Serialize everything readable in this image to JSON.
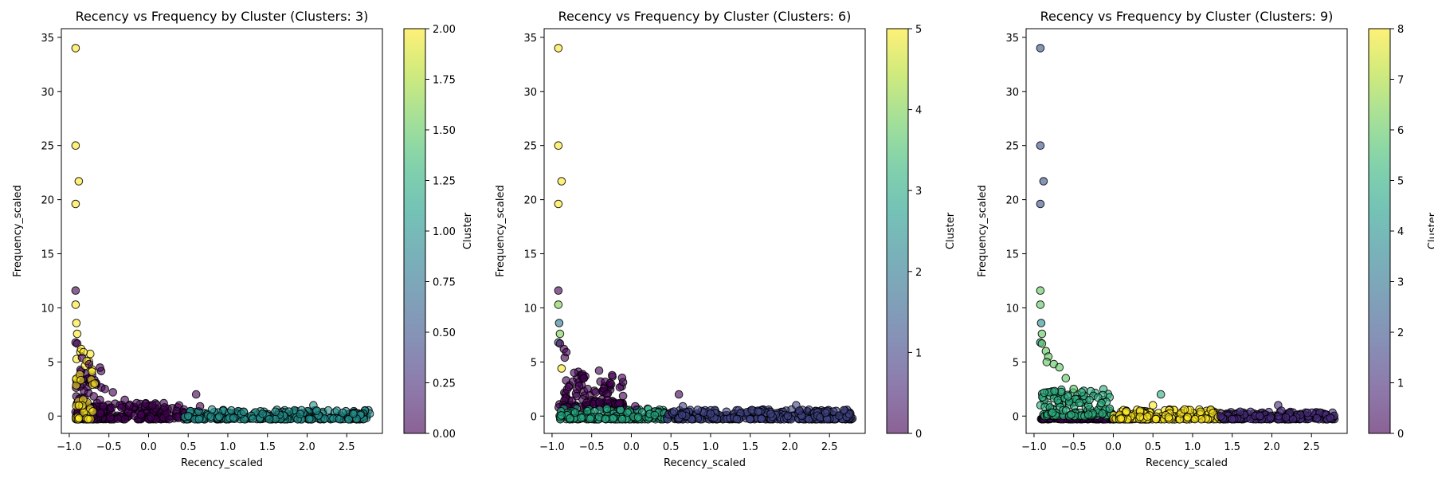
{
  "colorbar_label": "Cluster",
  "chart_data": [
    {
      "type": "scatter",
      "title": "Recency vs Frequency by Cluster (Clusters: 3)",
      "xlabel": "Recency_scaled",
      "ylabel": "Frequency_scaled",
      "xlim": [
        -1.1,
        2.95
      ],
      "ylim": [
        -1.6,
        35.8
      ],
      "xticks": [
        "−1.0",
        "−0.5",
        "0.0",
        "0.5",
        "1.0",
        "1.5",
        "2.0",
        "2.5"
      ],
      "yticks": [
        "0",
        "5",
        "10",
        "15",
        "20",
        "25",
        "30",
        "35"
      ],
      "colorbar": {
        "label": "Cluster",
        "min": 0,
        "max": 2,
        "ticks": [
          "0.00",
          "0.25",
          "0.50",
          "0.75",
          "1.00",
          "1.25",
          "1.50",
          "1.75",
          "2.00"
        ]
      },
      "groups": [
        {
          "cluster": 0,
          "x_range": [
            -0.92,
            0.48
          ],
          "y_range": [
            -0.3,
            1.2
          ],
          "dense_x_range": [
            -0.92,
            -0.55
          ],
          "dense_y_range": [
            -0.3,
            4.5
          ]
        },
        {
          "cluster": 1,
          "x_range": [
            0.45,
            2.8
          ],
          "y_range": [
            -0.3,
            0.6
          ]
        },
        {
          "cluster": 2,
          "x_range": [
            -0.92,
            -0.7
          ],
          "y_range": [
            -0.3,
            6.0
          ]
        }
      ],
      "points": [
        {
          "x": -0.92,
          "y": 34.0,
          "cluster": 2
        },
        {
          "x": -0.92,
          "y": 25.0,
          "cluster": 2
        },
        {
          "x": -0.88,
          "y": 21.7,
          "cluster": 2
        },
        {
          "x": -0.92,
          "y": 19.6,
          "cluster": 2
        },
        {
          "x": -0.92,
          "y": 11.6,
          "cluster": 0
        },
        {
          "x": -0.92,
          "y": 10.3,
          "cluster": 2
        },
        {
          "x": -0.91,
          "y": 8.6,
          "cluster": 2
        },
        {
          "x": -0.9,
          "y": 7.6,
          "cluster": 2
        },
        {
          "x": -0.92,
          "y": 6.8,
          "cluster": 0
        },
        {
          "x": -0.9,
          "y": 6.7,
          "cluster": 0
        },
        {
          "x": -0.85,
          "y": 6.2,
          "cluster": 2
        },
        {
          "x": -0.82,
          "y": 5.9,
          "cluster": 2
        },
        {
          "x": -0.84,
          "y": 5.4,
          "cluster": 0
        },
        {
          "x": -0.78,
          "y": 5.1,
          "cluster": 2
        },
        {
          "x": -0.75,
          "y": 4.8,
          "cluster": 0
        },
        {
          "x": -0.68,
          "y": 3.0,
          "cluster": 2
        },
        {
          "x": -0.55,
          "y": 2.5,
          "cluster": 0
        },
        {
          "x": -0.45,
          "y": 2.2,
          "cluster": 0
        },
        {
          "x": -0.3,
          "y": 1.5,
          "cluster": 0
        },
        {
          "x": -0.15,
          "y": 1.2,
          "cluster": 0
        },
        {
          "x": 0.05,
          "y": 1.0,
          "cluster": 0
        },
        {
          "x": 0.2,
          "y": 0.8,
          "cluster": 0
        },
        {
          "x": 0.6,
          "y": 2.0,
          "cluster": 0
        },
        {
          "x": 0.65,
          "y": 0.9,
          "cluster": 0
        },
        {
          "x": 0.8,
          "y": 0.6,
          "cluster": 1
        },
        {
          "x": 1.2,
          "y": 0.4,
          "cluster": 1
        },
        {
          "x": 1.6,
          "y": 0.4,
          "cluster": 1
        },
        {
          "x": 2.08,
          "y": 1.0,
          "cluster": 1
        },
        {
          "x": 2.12,
          "y": 0.5,
          "cluster": 1
        },
        {
          "x": 2.45,
          "y": 0.3,
          "cluster": 1
        }
      ]
    },
    {
      "type": "scatter",
      "title": "Recency vs Frequency by Cluster (Clusters: 6)",
      "xlabel": "Recency_scaled",
      "ylabel": "Frequency_scaled",
      "xlim": [
        -1.1,
        2.95
      ],
      "ylim": [
        -1.6,
        35.8
      ],
      "xticks": [
        "−1.0",
        "−0.5",
        "0.0",
        "0.5",
        "1.0",
        "1.5",
        "2.0",
        "2.5"
      ],
      "yticks": [
        "0",
        "5",
        "10",
        "15",
        "20",
        "25",
        "30",
        "35"
      ],
      "colorbar": {
        "label": "Cluster",
        "min": 0,
        "max": 5,
        "ticks": [
          "0",
          "1",
          "2",
          "3",
          "4",
          "5"
        ]
      },
      "groups": [
        {
          "cluster": 0,
          "x_range": [
            -0.92,
            -0.1
          ],
          "y_range": [
            0.8,
            4.5
          ]
        },
        {
          "cluster": 3,
          "x_range": [
            -0.92,
            0.45
          ],
          "y_range": [
            -0.3,
            0.7
          ]
        },
        {
          "cluster": 1,
          "x_range": [
            0.45,
            2.8
          ],
          "y_range": [
            -0.3,
            0.6
          ]
        }
      ],
      "points": [
        {
          "x": -0.92,
          "y": 34.0,
          "cluster": 5
        },
        {
          "x": -0.92,
          "y": 25.0,
          "cluster": 5
        },
        {
          "x": -0.88,
          "y": 21.7,
          "cluster": 5
        },
        {
          "x": -0.92,
          "y": 19.6,
          "cluster": 5
        },
        {
          "x": -0.92,
          "y": 11.6,
          "cluster": 0
        },
        {
          "x": -0.92,
          "y": 10.3,
          "cluster": 4
        },
        {
          "x": -0.91,
          "y": 8.6,
          "cluster": 2
        },
        {
          "x": -0.9,
          "y": 7.6,
          "cluster": 4
        },
        {
          "x": -0.92,
          "y": 6.8,
          "cluster": 2
        },
        {
          "x": -0.9,
          "y": 6.7,
          "cluster": 0
        },
        {
          "x": -0.85,
          "y": 6.2,
          "cluster": 0
        },
        {
          "x": -0.82,
          "y": 5.9,
          "cluster": 0
        },
        {
          "x": -0.84,
          "y": 5.4,
          "cluster": 0
        },
        {
          "x": -0.88,
          "y": 4.4,
          "cluster": 5
        },
        {
          "x": -0.72,
          "y": 4.0,
          "cluster": 0
        },
        {
          "x": -0.6,
          "y": 3.5,
          "cluster": 0
        },
        {
          "x": -0.55,
          "y": 2.5,
          "cluster": 0
        },
        {
          "x": -0.45,
          "y": 2.2,
          "cluster": 0
        },
        {
          "x": -0.3,
          "y": 1.5,
          "cluster": 0
        },
        {
          "x": -0.15,
          "y": 1.2,
          "cluster": 0
        },
        {
          "x": 0.05,
          "y": 0.9,
          "cluster": 0
        },
        {
          "x": 0.6,
          "y": 2.0,
          "cluster": 0
        },
        {
          "x": 0.65,
          "y": 0.9,
          "cluster": 1
        },
        {
          "x": 1.2,
          "y": 0.4,
          "cluster": 1
        },
        {
          "x": 1.6,
          "y": 0.4,
          "cluster": 1
        },
        {
          "x": 2.08,
          "y": 1.0,
          "cluster": 1
        },
        {
          "x": 2.12,
          "y": 0.5,
          "cluster": 1
        },
        {
          "x": 2.45,
          "y": 0.3,
          "cluster": 1
        }
      ]
    },
    {
      "type": "scatter",
      "title": "Recency vs Frequency by Cluster (Clusters: 9)",
      "xlabel": "Recency_scaled",
      "ylabel": "Frequency_scaled",
      "xlim": [
        -1.1,
        2.95
      ],
      "ylim": [
        -1.6,
        35.8
      ],
      "xticks": [
        "−1.0",
        "−0.5",
        "0.0",
        "0.5",
        "1.0",
        "1.5",
        "2.0",
        "2.5"
      ],
      "yticks": [
        "0",
        "5",
        "10",
        "15",
        "20",
        "25",
        "30",
        "35"
      ],
      "colorbar": {
        "label": "Cluster",
        "min": 0,
        "max": 8,
        "ticks": [
          "0",
          "1",
          "2",
          "3",
          "4",
          "5",
          "6",
          "7",
          "8"
        ]
      },
      "groups": [
        {
          "cluster": 0,
          "x_range": [
            -0.92,
            0.45
          ],
          "y_range": [
            -0.3,
            -0.1
          ]
        },
        {
          "cluster": 5,
          "x_range": [
            -0.92,
            0.0
          ],
          "y_range": [
            0.0,
            2.5
          ]
        },
        {
          "cluster": 8,
          "x_range": [
            0.0,
            1.35
          ],
          "y_range": [
            -0.3,
            0.6
          ]
        },
        {
          "cluster": 1,
          "x_range": [
            1.35,
            2.8
          ],
          "y_range": [
            -0.3,
            0.4
          ]
        }
      ],
      "points": [
        {
          "x": -0.92,
          "y": 34.0,
          "cluster": 2
        },
        {
          "x": -0.92,
          "y": 25.0,
          "cluster": 2
        },
        {
          "x": -0.88,
          "y": 21.7,
          "cluster": 2
        },
        {
          "x": -0.92,
          "y": 19.6,
          "cluster": 2
        },
        {
          "x": -0.92,
          "y": 11.6,
          "cluster": 6
        },
        {
          "x": -0.92,
          "y": 10.3,
          "cluster": 6
        },
        {
          "x": -0.91,
          "y": 8.6,
          "cluster": 4
        },
        {
          "x": -0.9,
          "y": 7.6,
          "cluster": 6
        },
        {
          "x": -0.92,
          "y": 6.8,
          "cluster": 4
        },
        {
          "x": -0.9,
          "y": 6.7,
          "cluster": 6
        },
        {
          "x": -0.85,
          "y": 6.0,
          "cluster": 6
        },
        {
          "x": -0.82,
          "y": 5.5,
          "cluster": 6
        },
        {
          "x": -0.84,
          "y": 5.0,
          "cluster": 6
        },
        {
          "x": -0.75,
          "y": 4.8,
          "cluster": 6
        },
        {
          "x": -0.68,
          "y": 4.5,
          "cluster": 6
        },
        {
          "x": -0.6,
          "y": 3.5,
          "cluster": 6
        },
        {
          "x": -0.5,
          "y": 2.5,
          "cluster": 6
        },
        {
          "x": -0.4,
          "y": 2.2,
          "cluster": 5
        },
        {
          "x": -0.3,
          "y": 1.5,
          "cluster": 5
        },
        {
          "x": -0.15,
          "y": 1.2,
          "cluster": 5
        },
        {
          "x": 0.6,
          "y": 2.0,
          "cluster": 5
        },
        {
          "x": 0.5,
          "y": 1.0,
          "cluster": 8
        },
        {
          "x": 0.9,
          "y": 0.6,
          "cluster": 8
        },
        {
          "x": 1.1,
          "y": 0.4,
          "cluster": 8
        },
        {
          "x": 1.6,
          "y": 0.4,
          "cluster": 1
        },
        {
          "x": 2.08,
          "y": 1.0,
          "cluster": 1
        },
        {
          "x": 2.12,
          "y": 0.5,
          "cluster": 1
        },
        {
          "x": 2.45,
          "y": 0.3,
          "cluster": 1
        }
      ]
    }
  ]
}
